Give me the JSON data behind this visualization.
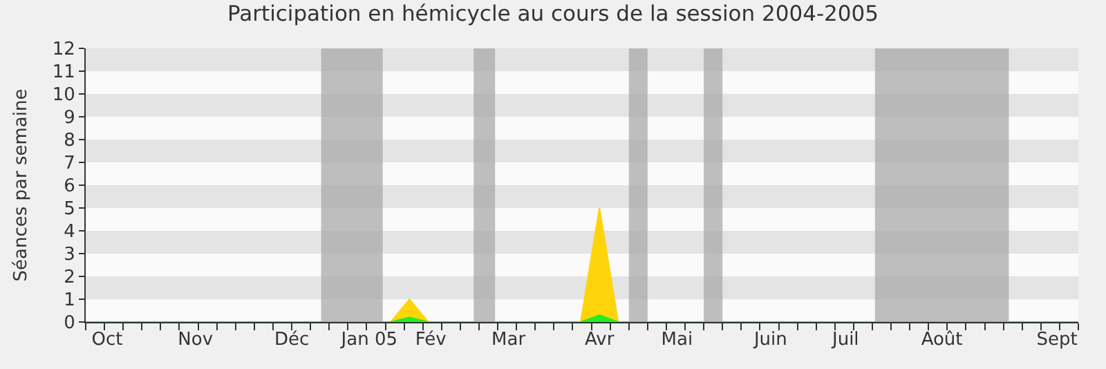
{
  "chart_data": {
    "type": "area",
    "title": "Participation en hémicycle au cours de la session 2004-2005",
    "ylabel": "Séances par semaine",
    "x": [
      "2004-09-27",
      "2005-01-19",
      "2005-01-26",
      "2005-02-02",
      "2005-03-31",
      "2005-04-07",
      "2005-04-14",
      "2005-10-03"
    ],
    "series": [
      {
        "color": "#ffd40a",
        "values": [
          0,
          0,
          1,
          0,
          0,
          5,
          0,
          0
        ]
      },
      {
        "color": "#22ee22",
        "values": [
          0,
          0,
          0.2,
          0,
          0,
          0.3,
          0,
          0
        ]
      }
    ],
    "xlim": [
      "2004-09-27",
      "2005-10-03"
    ],
    "xticks": [
      {
        "value": "2004-10-05",
        "label": "Oct"
      },
      {
        "value": "2004-11-07",
        "label": "Nov"
      },
      {
        "value": "2004-12-13",
        "label": "Déc"
      },
      {
        "value": "2005-01-11",
        "label": "Jan 05"
      },
      {
        "value": "2005-02-03",
        "label": "Fév"
      },
      {
        "value": "2005-03-04",
        "label": "Mar"
      },
      {
        "value": "2005-04-07",
        "label": "Avr"
      },
      {
        "value": "2005-05-06",
        "label": "Mai"
      },
      {
        "value": "2005-06-10",
        "label": "Juin"
      },
      {
        "value": "2005-07-08",
        "label": "Juil"
      },
      {
        "value": "2005-08-13",
        "label": "Août"
      },
      {
        "value": "2005-09-25",
        "label": "Sept"
      }
    ],
    "ylim": [
      0,
      12
    ],
    "yticks": [
      0,
      1,
      2,
      3,
      4,
      5,
      6,
      7,
      8,
      9,
      10,
      11,
      12
    ],
    "bands": [
      {
        "axis": "x",
        "from": "2004-12-24",
        "to": "2005-01-16",
        "color": "#aaaaaa"
      },
      {
        "axis": "x",
        "from": "2005-02-19",
        "to": "2005-02-27",
        "color": "#aaaaaa"
      },
      {
        "axis": "x",
        "from": "2005-04-18",
        "to": "2005-04-25",
        "color": "#aaaaaa"
      },
      {
        "axis": "x",
        "from": "2005-05-16",
        "to": "2005-05-23",
        "color": "#aaaaaa"
      },
      {
        "axis": "x",
        "from": "2005-07-19",
        "to": "2005-09-07",
        "color": "#aaaaaa"
      }
    ],
    "grid": false
  }
}
